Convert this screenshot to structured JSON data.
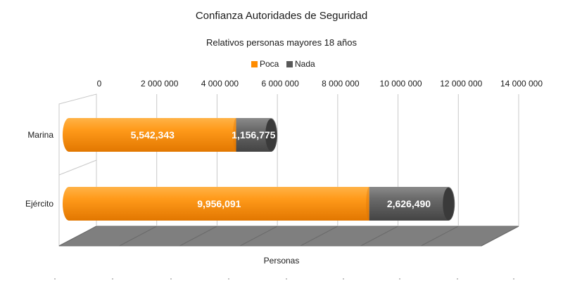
{
  "chart_data": {
    "type": "bar",
    "orientation": "horizontal",
    "stacked": true,
    "title": "Confianza Autoridades de Seguridad",
    "subtitle": "Relativos personas mayores 18 años",
    "xlabel": "Personas",
    "ylabel": "",
    "categories": [
      "Marina",
      "Ejército"
    ],
    "series": [
      {
        "name": "Poca",
        "values": [
          5542343,
          9956091
        ],
        "labels": [
          "5,542,343",
          "9,956,091"
        ],
        "color": "#ff8c00"
      },
      {
        "name": "Nada",
        "values": [
          1156775,
          2626490
        ],
        "labels": [
          "1,156,775",
          "2,626,490"
        ],
        "color": "#595959"
      }
    ],
    "xlim": [
      0,
      14000000
    ],
    "ticks": [
      0,
      2000000,
      4000000,
      6000000,
      8000000,
      10000000,
      12000000,
      14000000
    ],
    "tick_labels": [
      "0",
      "2 000 000",
      "4 000 000",
      "6 000 000",
      "8 000 000",
      "10 000 000",
      "12 000 000",
      "14 000 000"
    ],
    "legend_position": "top",
    "grid": true
  }
}
